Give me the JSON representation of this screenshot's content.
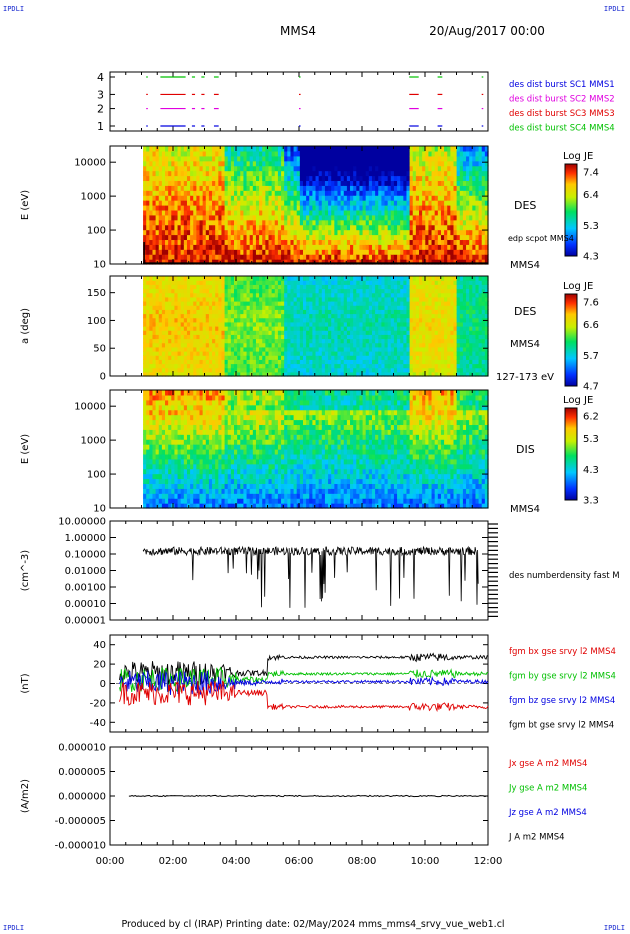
{
  "header": {
    "corner_left": "IPDLI",
    "corner_right": "IPDLI",
    "title": "MMS4",
    "date": "20/Aug/2017 00:00"
  },
  "footer": {
    "text": "Produced by cl (IRAP)   Printing date: 02/May/2024   mms_mms4_srvy_vue_web1.cl",
    "corner_left": "IPDLI",
    "corner_right": "IPDLI"
  },
  "colors": {
    "red": "#e00000",
    "green": "#00c000",
    "blue": "#0000e0",
    "magenta": "#e000e0",
    "black": "#000000"
  },
  "chart_data": [
    {
      "type": "line",
      "panel": "burst-availability",
      "y_ticks": [
        "1",
        "2",
        "3",
        "4"
      ],
      "x_range_hours": [
        0,
        12
      ],
      "legend": [
        {
          "text": "des dist burst SC1 MMS1",
          "color": "#0000e0"
        },
        {
          "text": "des dist burst SC2 MMS2",
          "color": "#e000e0"
        },
        {
          "text": "des dist burst SC3 MMS3",
          "color": "#e00000"
        },
        {
          "text": "des dist burst SC4 MMS4",
          "color": "#00c000"
        }
      ],
      "segments_hours": [
        [
          1.15,
          1.2
        ],
        [
          1.6,
          2.4
        ],
        [
          2.6,
          2.7
        ],
        [
          2.9,
          3.0
        ],
        [
          3.3,
          3.45
        ],
        [
          6.0,
          6.05
        ],
        [
          9.5,
          9.8
        ],
        [
          10.4,
          10.55
        ],
        [
          11.8,
          11.85
        ]
      ]
    },
    {
      "type": "heatmap",
      "panel": "des-energy-spectrogram",
      "ylabel": "E (eV)",
      "y_ticks": [
        "10",
        "100",
        "1000",
        "10000"
      ],
      "ylim": [
        10,
        30000
      ],
      "yscale": "log",
      "label": "DES",
      "overlay_label": "edp scpot MMS4",
      "sc_label": "MMS4",
      "colorbar": {
        "title": "Log JE",
        "ticks": [
          "7.4",
          "6.4",
          "5.3",
          "4.3"
        ]
      },
      "data_start_hours": 1.05
    },
    {
      "type": "heatmap",
      "panel": "des-pitch-angle",
      "ylabel": "a (deg)",
      "y_ticks": [
        "0",
        "50",
        "100",
        "150"
      ],
      "ylim": [
        0,
        180
      ],
      "label": "DES",
      "sc_label": "MMS4",
      "energy_range": "127-173 eV",
      "colorbar": {
        "title": "Log JE",
        "ticks": [
          "7.6",
          "6.6",
          "5.7",
          "4.7"
        ]
      },
      "data_start_hours": 1.05
    },
    {
      "type": "heatmap",
      "panel": "dis-energy-spectrogram",
      "ylabel": "E (eV)",
      "y_ticks": [
        "10",
        "100",
        "1000",
        "10000"
      ],
      "ylim": [
        10,
        30000
      ],
      "yscale": "log",
      "label": "DIS",
      "sc_label": "MMS4",
      "colorbar": {
        "title": "Log JE",
        "ticks": [
          "6.2",
          "5.3",
          "4.3",
          "3.3"
        ]
      },
      "data_start_hours": 1.05
    },
    {
      "type": "line",
      "panel": "number-density",
      "ylabel": "(cm^-3)",
      "yscale": "log",
      "y_ticks": [
        "10.00000",
        "1.00000",
        "0.10000",
        "0.01000",
        "0.00100",
        "0.00010",
        "0.00001"
      ],
      "ylim": [
        1e-05,
        10
      ],
      "series": [
        {
          "name": "des numberdensity fast M",
          "color": "#000000"
        }
      ],
      "x_range_hours": [
        1.05,
        11.7
      ],
      "typical_value": 0.15
    },
    {
      "type": "line",
      "panel": "magnetic-field",
      "ylabel": "(nT)",
      "y_ticks": [
        "40",
        "20",
        "0",
        "-20",
        "-40"
      ],
      "ylim": [
        -50,
        50
      ],
      "series": [
        {
          "name": "fgm bx gse srvy l2 MMS4",
          "color": "#e00000",
          "level_after_6h": -24
        },
        {
          "name": "fgm by gse srvy l2 MMS4",
          "color": "#00c000",
          "level_after_6h": 10
        },
        {
          "name": "fgm bz gse srvy l2 MMS4",
          "color": "#0000e0",
          "level_after_6h": 2
        },
        {
          "name": "fgm bt gse srvy l2 MMS4",
          "color": "#000000",
          "level_after_6h": 27
        }
      ],
      "x_range_hours": [
        0.3,
        12
      ]
    },
    {
      "type": "line",
      "panel": "current-density",
      "ylabel": "(A/m2)",
      "y_ticks": [
        "0.000010",
        "0.000005",
        "0.000000",
        "-0.000005",
        "-0.000010"
      ],
      "ylim": [
        -1e-05,
        1e-05
      ],
      "series": [
        {
          "name": "Jx gse A m2 MMS4",
          "color": "#e00000"
        },
        {
          "name": "Jy gse A m2 MMS4",
          "color": "#00c000"
        },
        {
          "name": "Jz gse A m2 MMS4",
          "color": "#0000e0"
        },
        {
          "name": "J A m2 MMS4",
          "color": "#000000"
        }
      ],
      "values_note_level": 0.0
    }
  ],
  "x_axis": {
    "ticks": [
      "00:00",
      "02:00",
      "04:00",
      "06:00",
      "08:00",
      "10:00",
      "12:00"
    ],
    "range_hours": [
      0,
      12
    ]
  }
}
